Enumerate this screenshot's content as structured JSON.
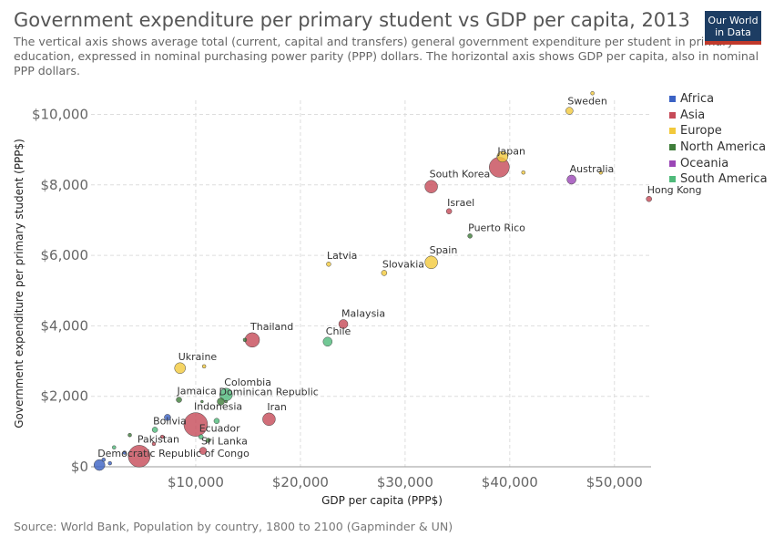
{
  "title": "Government expenditure per primary student vs GDP per capita, 2013",
  "subtitle": "The vertical axis shows average total (current, capital and transfers) general government expenditure per student in primary education, expressed in nominal purchasing power parity (PPP) dollars. The horizontal axis shows GDP per capita, also in nominal PPP dollars.",
  "logo": {
    "line1": "Our World",
    "line2": "in Data"
  },
  "source": "Source: World Bank, Population by country, 1800 to 2100 (Gapminder & UN)",
  "chart_data": {
    "type": "scatter",
    "title": "Government expenditure per primary student vs GDP per capita, 2013",
    "xlabel": "GDP per capita (PPP$)",
    "ylabel": "Government expenditure per primary student (PPP$)",
    "xlim": [
      0,
      53500
    ],
    "ylim": [
      0,
      10400
    ],
    "xticks": [
      10000,
      20000,
      30000,
      40000,
      50000
    ],
    "xtick_labels": [
      "$10,000",
      "$20,000",
      "$30,000",
      "$40,000",
      "$50,000"
    ],
    "yticks": [
      0,
      2000,
      4000,
      6000,
      8000,
      10000
    ],
    "ytick_labels": [
      "$0",
      "$2,000",
      "$4,000",
      "$6,000",
      "$8,000",
      "$10,000"
    ],
    "grid": true,
    "legend_position": "right",
    "series": [
      {
        "name": "Africa",
        "color": "#3b62c4"
      },
      {
        "name": "Asia",
        "color": "#c64a58"
      },
      {
        "name": "Europe",
        "color": "#f2c93c"
      },
      {
        "name": "North America",
        "color": "#3f7d3a"
      },
      {
        "name": "Oceania",
        "color": "#9b46b6"
      },
      {
        "name": "South America",
        "color": "#4fba7a"
      }
    ],
    "points": [
      {
        "label": "Sweden",
        "continent": "Europe",
        "x": 45700,
        "y": 10100,
        "size": 4
      },
      {
        "label": "",
        "continent": "Europe",
        "x": 47900,
        "y": 10600,
        "size": 2
      },
      {
        "label": "Japan",
        "continent": "Asia",
        "x": 39000,
        "y": 8500,
        "size": 11
      },
      {
        "label": "",
        "continent": "Europe",
        "x": 39300,
        "y": 8800,
        "size": 6
      },
      {
        "label": "",
        "continent": "Europe",
        "x": 41300,
        "y": 8350,
        "size": 2
      },
      {
        "label": "Australia",
        "continent": "Oceania",
        "x": 45900,
        "y": 8150,
        "size": 5
      },
      {
        "label": "",
        "continent": "Europe",
        "x": 48700,
        "y": 8350,
        "size": 2
      },
      {
        "label": "Hong Kong",
        "continent": "Asia",
        "x": 53300,
        "y": 7600,
        "size": 3
      },
      {
        "label": "South Korea",
        "continent": "Asia",
        "x": 32500,
        "y": 7950,
        "size": 7
      },
      {
        "label": "Israel",
        "continent": "Asia",
        "x": 34200,
        "y": 7250,
        "size": 3
      },
      {
        "label": "Puerto Rico",
        "continent": "North America",
        "x": 36200,
        "y": 6550,
        "size": 2.5
      },
      {
        "label": "Spain",
        "continent": "Europe",
        "x": 32500,
        "y": 5800,
        "size": 7
      },
      {
        "label": "Slovakia",
        "continent": "Europe",
        "x": 28000,
        "y": 5500,
        "size": 3
      },
      {
        "label": "Latvia",
        "continent": "Europe",
        "x": 22700,
        "y": 5750,
        "size": 2.5
      },
      {
        "label": "Malaysia",
        "continent": "Asia",
        "x": 24100,
        "y": 4050,
        "size": 5
      },
      {
        "label": "Thailand",
        "continent": "Asia",
        "x": 15400,
        "y": 3600,
        "size": 8
      },
      {
        "label": "",
        "continent": "North America",
        "x": 14700,
        "y": 3600,
        "size": 2
      },
      {
        "label": "Chile",
        "continent": "South America",
        "x": 22600,
        "y": 3550,
        "size": 5
      },
      {
        "label": "Ukraine",
        "continent": "Europe",
        "x": 8500,
        "y": 2800,
        "size": 6
      },
      {
        "label": "",
        "continent": "Europe",
        "x": 10800,
        "y": 2850,
        "size": 2
      },
      {
        "label": "Colombia",
        "continent": "South America",
        "x": 12900,
        "y": 2050,
        "size": 7
      },
      {
        "label": "Jamaica",
        "continent": "North America",
        "x": 8400,
        "y": 1900,
        "size": 3
      },
      {
        "label": "",
        "continent": "North America",
        "x": 10600,
        "y": 1850,
        "size": 1.5
      },
      {
        "label": "Dominican Republic",
        "continent": "North America",
        "x": 12400,
        "y": 1850,
        "size": 4
      },
      {
        "label": "",
        "continent": "North America",
        "x": 12900,
        "y": 1850,
        "size": 1.5
      },
      {
        "label": "Iran",
        "continent": "Asia",
        "x": 17000,
        "y": 1350,
        "size": 7
      },
      {
        "label": "Indonesia",
        "continent": "Asia",
        "x": 10000,
        "y": 1200,
        "size": 13
      },
      {
        "label": "",
        "continent": "South America",
        "x": 12000,
        "y": 1300,
        "size": 3
      },
      {
        "label": "Bolivia",
        "continent": "South America",
        "x": 6100,
        "y": 1050,
        "size": 3
      },
      {
        "label": "",
        "continent": "Africa",
        "x": 7300,
        "y": 1400,
        "size": 3.5
      },
      {
        "label": "",
        "continent": "North America",
        "x": 3700,
        "y": 900,
        "size": 2
      },
      {
        "label": "",
        "continent": "Asia",
        "x": 6800,
        "y": 850,
        "size": 2
      },
      {
        "label": "",
        "continent": "Asia",
        "x": 6000,
        "y": 650,
        "size": 2
      },
      {
        "label": "Ecuador",
        "continent": "South America",
        "x": 10500,
        "y": 850,
        "size": 2.5
      },
      {
        "label": "",
        "continent": "North America",
        "x": 11200,
        "y": 750,
        "size": 2.5
      },
      {
        "label": "Sri Lanka",
        "continent": "Asia",
        "x": 10700,
        "y": 450,
        "size": 4
      },
      {
        "label": "Pakistan",
        "continent": "Asia",
        "x": 4600,
        "y": 300,
        "size": 12
      },
      {
        "label": "",
        "continent": "Africa",
        "x": 3200,
        "y": 400,
        "size": 2
      },
      {
        "label": "",
        "continent": "Africa",
        "x": 1800,
        "y": 100,
        "size": 2
      },
      {
        "label": "",
        "continent": "Africa",
        "x": 1200,
        "y": 200,
        "size": 2
      },
      {
        "label": "",
        "continent": "South America",
        "x": 2200,
        "y": 550,
        "size": 2
      },
      {
        "label": "Democratic Republic of Congo",
        "continent": "Africa",
        "x": 800,
        "y": 50,
        "size": 6
      }
    ]
  }
}
